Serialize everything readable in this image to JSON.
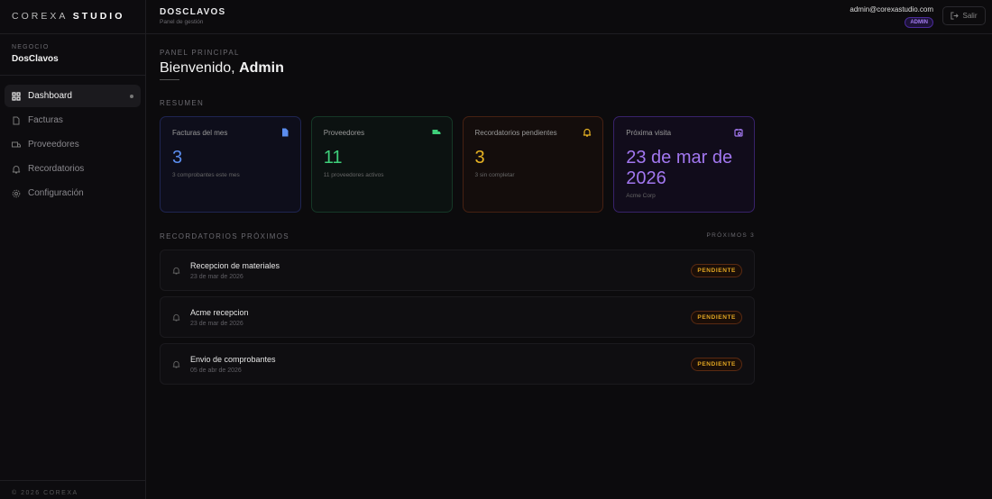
{
  "sidebar": {
    "logo_light": "COREXA",
    "logo_bold": "STUDIO",
    "business_label": "NEGOCIO",
    "business_name": "DosClavos",
    "items": [
      {
        "label": "Dashboard",
        "icon": "grid-icon"
      },
      {
        "label": "Facturas",
        "icon": "file-icon"
      },
      {
        "label": "Proveedores",
        "icon": "truck-icon"
      },
      {
        "label": "Recordatorios",
        "icon": "bell-icon"
      },
      {
        "label": "Configuración",
        "icon": "gear-icon"
      }
    ],
    "footer": "© 2026 COREXA"
  },
  "header": {
    "brand": "DOSCLAVOS",
    "subtitle": "Panel de gestión",
    "email": "admin@corexastudio.com",
    "role": "ADMIN",
    "logout": "Salir"
  },
  "main": {
    "section": "PANEL PRINCIPAL",
    "welcome": "Bienvenido,",
    "user": "Admin",
    "summary_label": "RESUMEN",
    "cards": [
      {
        "title": "Facturas del mes",
        "value": "3",
        "sub": "3 comprobantes este mes",
        "color": "#5b8def",
        "icon": "file-icon"
      },
      {
        "title": "Proveedores",
        "value": "11",
        "sub": "11 proveedores activos",
        "color": "#3ecf7a",
        "icon": "truck-icon"
      },
      {
        "title": "Recordatorios pendientes",
        "value": "3",
        "sub": "3 sin completar",
        "color": "#e8b323",
        "icon": "bell-icon"
      },
      {
        "title": "Próxima visita",
        "value": "23 de mar de 2026",
        "sub": "Acme Corp",
        "color": "#a277f0",
        "icon": "calendar-icon"
      }
    ],
    "reminders_label": "RECORDATORIOS PRÓXIMOS",
    "reminders_count": "PRÓXIMOS 3",
    "reminders": [
      {
        "title": "Recepcion de materiales",
        "date": "23 de mar de 2026",
        "status": "PENDIENTE"
      },
      {
        "title": "Acme recepcion",
        "date": "23 de mar de 2026",
        "status": "PENDIENTE"
      },
      {
        "title": "Envio de comprobantes",
        "date": "05 de abr de 2026",
        "status": "PENDIENTE"
      }
    ]
  }
}
